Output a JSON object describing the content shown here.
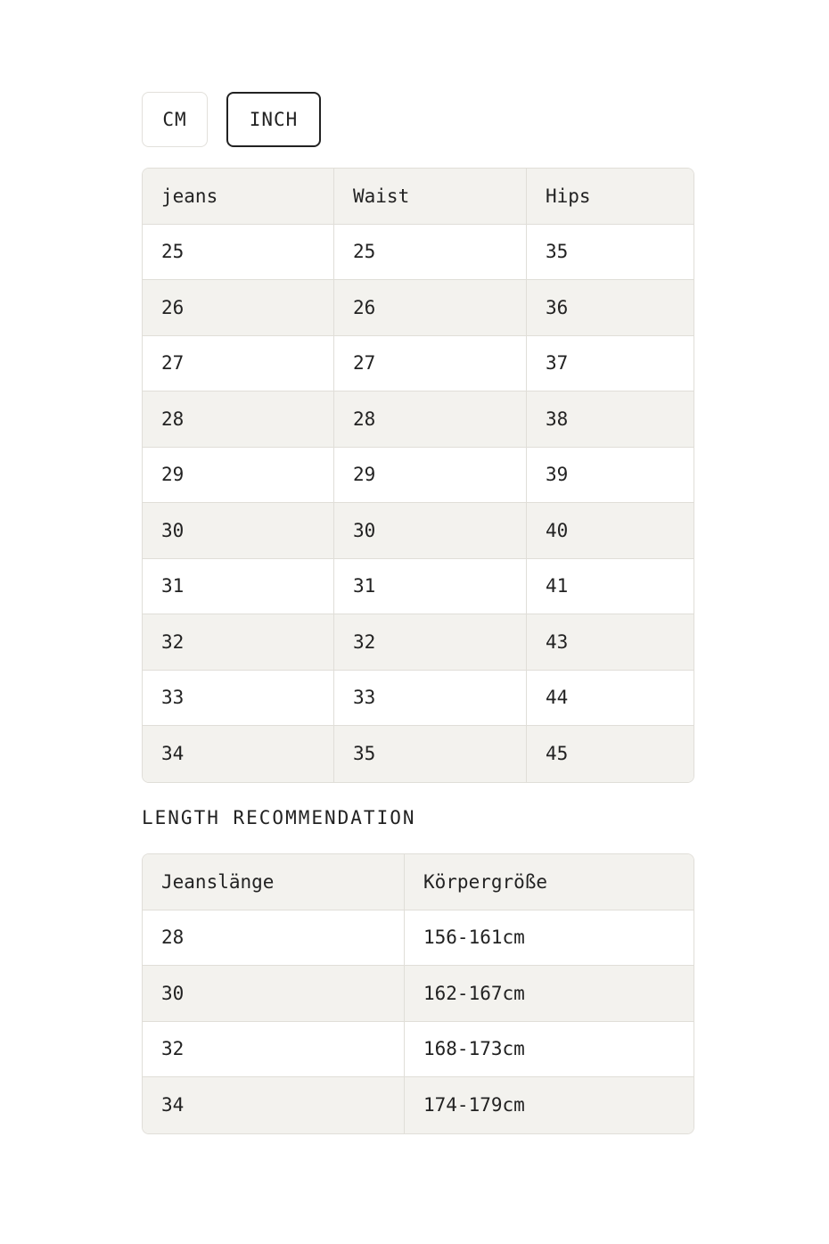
{
  "unit_toggle": {
    "options": [
      "CM",
      "INCH"
    ],
    "selected": "INCH"
  },
  "size_table": {
    "headers": [
      "jeans",
      "Waist",
      "Hips"
    ],
    "rows": [
      [
        "25",
        "25",
        "35"
      ],
      [
        "26",
        "26",
        "36"
      ],
      [
        "27",
        "27",
        "37"
      ],
      [
        "28",
        "28",
        "38"
      ],
      [
        "29",
        "29",
        "39"
      ],
      [
        "30",
        "30",
        "40"
      ],
      [
        "31",
        "31",
        "41"
      ],
      [
        "32",
        "32",
        "43"
      ],
      [
        "33",
        "33",
        "44"
      ],
      [
        "34",
        "35",
        "45"
      ]
    ]
  },
  "length_heading": "LENGTH RECOMMENDATION",
  "length_table": {
    "headers": [
      "Jeanslänge",
      "Körpergröße"
    ],
    "rows": [
      [
        "28",
        "156-161cm"
      ],
      [
        "30",
        "162-167cm"
      ],
      [
        "32",
        "168-173cm"
      ],
      [
        "34",
        "174-179cm"
      ]
    ]
  }
}
